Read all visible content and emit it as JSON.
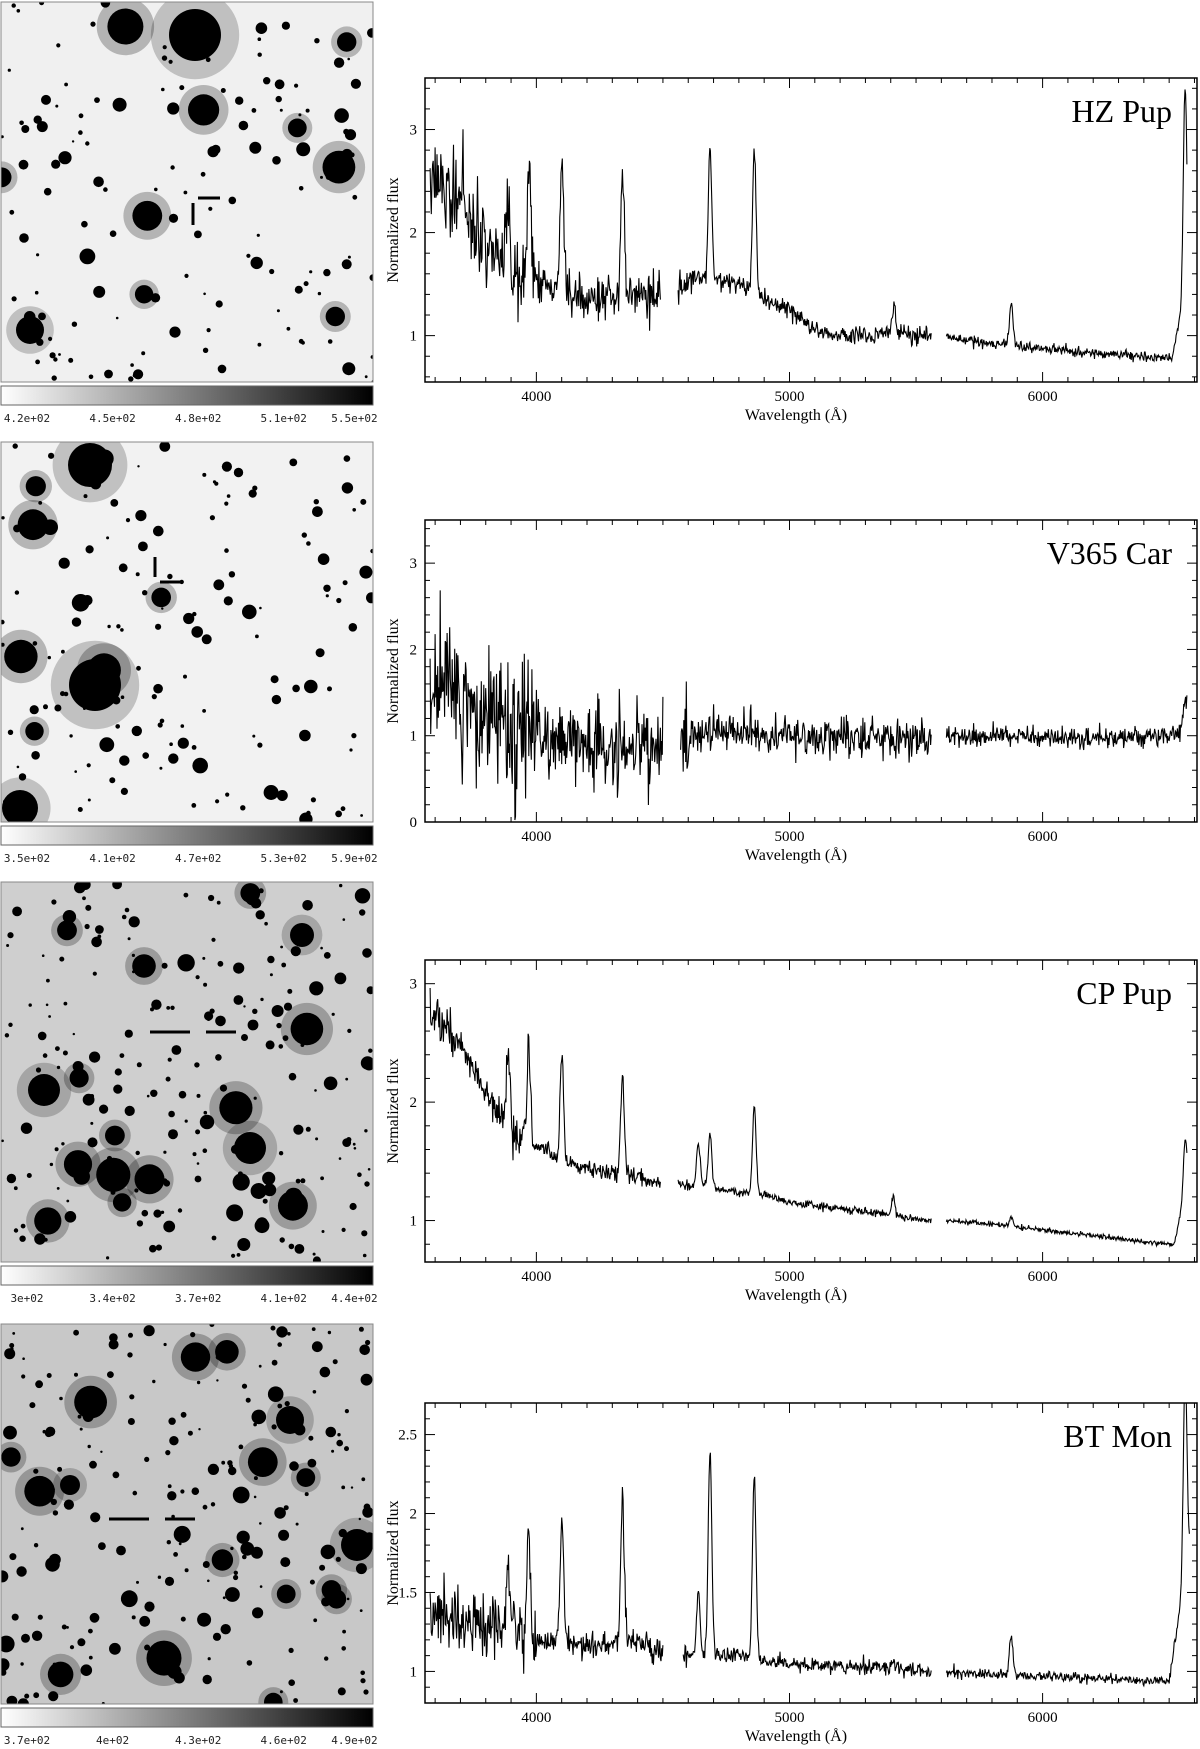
{
  "figure": {
    "panels": [
      {
        "object": "HZ Pup",
        "colorbar_labels": [
          "4.2e+02",
          "4.5e+02",
          "4.8e+02",
          "5.1e+02",
          "5.5e+02"
        ],
        "image_background": "#f0f0f0",
        "marker": "two-ticks-left-top"
      },
      {
        "object": "V365 Car",
        "colorbar_labels": [
          "3.5e+02",
          "4.1e+02",
          "4.7e+02",
          "5.3e+02",
          "5.9e+02"
        ],
        "image_background": "#f2f2f2",
        "marker": "two-ticks-left-bottom"
      },
      {
        "object": "CP Pup",
        "colorbar_labels": [
          "3e+02",
          "3.4e+02",
          "3.7e+02",
          "4.1e+02",
          "4.4e+02"
        ],
        "image_background": "#cfcfcf",
        "marker": "horizontal-both"
      },
      {
        "object": "BT Mon",
        "colorbar_labels": [
          "3.7e+02",
          "4e+02",
          "4.3e+02",
          "4.6e+02",
          "4.9e+02"
        ],
        "image_background": "#c8c8c8",
        "marker": "horizontal-both"
      }
    ]
  },
  "chart_data": [
    {
      "type": "line",
      "object": "HZ Pup",
      "xlabel": "Wavelength (Å)",
      "ylabel": "Normalized flux",
      "xlim": [
        3560,
        6610
      ],
      "ylim": [
        0.55,
        3.5
      ],
      "xticks": [
        4000,
        5000,
        6000
      ],
      "yticks": [
        1,
        2,
        3
      ],
      "noise": [
        0.45,
        0.1,
        0.05
      ],
      "segments": [
        [
          3580,
          4490,
          [
            [
              3580,
              2.6
            ],
            [
              3650,
              2.45
            ],
            [
              3700,
              2.3
            ],
            [
              3800,
              1.9
            ],
            [
              3900,
              1.55
            ],
            [
              4000,
              1.5
            ],
            [
              4100,
              1.45
            ],
            [
              4200,
              1.35
            ],
            [
              4300,
              1.35
            ],
            [
              4400,
              1.4
            ],
            [
              4490,
              1.4
            ]
          ]
        ],
        [
          4560,
          5560,
          [
            [
              4560,
              1.5
            ],
            [
              4650,
              1.55
            ],
            [
              4800,
              1.5
            ],
            [
              4900,
              1.35
            ],
            [
              5000,
              1.25
            ],
            [
              5100,
              1.05
            ],
            [
              5200,
              1.0
            ],
            [
              5300,
              1.0
            ],
            [
              5400,
              1.05
            ],
            [
              5560,
              0.98
            ]
          ]
        ],
        [
          5620,
          6570,
          [
            [
              5620,
              0.97
            ],
            [
              5800,
              0.92
            ],
            [
              6000,
              0.88
            ],
            [
              6200,
              0.83
            ],
            [
              6400,
              0.8
            ],
            [
              6510,
              0.78
            ],
            [
              6570,
              1.5
            ]
          ]
        ]
      ],
      "lines": [
        [
          3889,
          0.9
        ],
        [
          3970,
          1.05
        ],
        [
          4101,
          1.25
        ],
        [
          4340,
          1.15
        ],
        [
          4686,
          1.3
        ],
        [
          4861,
          1.4
        ],
        [
          5411,
          0.2
        ],
        [
          5876,
          0.4
        ],
        [
          6563,
          2.0
        ]
      ],
      "line_width": 7
    },
    {
      "type": "line",
      "object": "V365 Car",
      "xlabel": "Wavelength (Å)",
      "ylabel": "Normalized flux",
      "xlim": [
        3560,
        6610
      ],
      "ylim": [
        0,
        3.5
      ],
      "xticks": [
        4000,
        5000,
        6000
      ],
      "yticks": [
        0,
        1,
        2,
        3
      ],
      "noise": [
        0.8,
        0.25,
        0.12
      ],
      "segments": [
        [
          3580,
          4500,
          [
            [
              3580,
              1.8
            ],
            [
              3650,
              1.6
            ],
            [
              3700,
              1.3
            ],
            [
              3800,
              1.1
            ],
            [
              4000,
              0.95
            ],
            [
              4200,
              0.9
            ],
            [
              4500,
              0.85
            ]
          ]
        ],
        [
          4570,
          5560,
          [
            [
              4570,
              1.0
            ],
            [
              4800,
              1.05
            ],
            [
              5000,
              1.0
            ],
            [
              5300,
              0.98
            ],
            [
              5560,
              0.95
            ]
          ]
        ],
        [
          5620,
          6570,
          [
            [
              5620,
              1.0
            ],
            [
              5900,
              1.0
            ],
            [
              6200,
              0.97
            ],
            [
              6500,
              1.0
            ],
            [
              6570,
              1.1
            ]
          ]
        ]
      ],
      "lines": [
        [
          6563,
          0.3
        ]
      ],
      "line_width": 7
    },
    {
      "type": "line",
      "object": "CP Pup",
      "xlabel": "Wavelength (Å)",
      "ylabel": "Normalized flux",
      "xlim": [
        3560,
        6610
      ],
      "ylim": [
        0.65,
        3.2
      ],
      "xticks": [
        4000,
        5000,
        6000
      ],
      "yticks": [
        1,
        2,
        3
      ],
      "noise": [
        0.18,
        0.03,
        0.02
      ],
      "segments": [
        [
          3580,
          4490,
          [
            [
              3580,
              2.7
            ],
            [
              3650,
              2.65
            ],
            [
              3700,
              2.5
            ],
            [
              3800,
              2.1
            ],
            [
              3900,
              1.75
            ],
            [
              4000,
              1.65
            ],
            [
              4100,
              1.5
            ],
            [
              4200,
              1.45
            ],
            [
              4300,
              1.4
            ],
            [
              4400,
              1.38
            ],
            [
              4490,
              1.3
            ]
          ]
        ],
        [
          4560,
          5560,
          [
            [
              4560,
              1.3
            ],
            [
              4650,
              1.3
            ],
            [
              4750,
              1.25
            ],
            [
              4900,
              1.22
            ],
            [
              5000,
              1.15
            ],
            [
              5200,
              1.1
            ],
            [
              5400,
              1.05
            ],
            [
              5560,
              1.0
            ]
          ]
        ],
        [
          5620,
          6570,
          [
            [
              5620,
              1.0
            ],
            [
              5800,
              0.97
            ],
            [
              6000,
              0.92
            ],
            [
              6200,
              0.87
            ],
            [
              6400,
              0.82
            ],
            [
              6520,
              0.8
            ],
            [
              6570,
              1.3
            ]
          ]
        ]
      ],
      "lines": [
        [
          3889,
          0.6
        ],
        [
          3970,
          0.8
        ],
        [
          4101,
          0.9
        ],
        [
          4340,
          0.85
        ],
        [
          4640,
          0.35
        ],
        [
          4686,
          0.45
        ],
        [
          4861,
          0.75
        ],
        [
          5411,
          0.15
        ],
        [
          5876,
          0.08
        ],
        [
          6563,
          0.45
        ]
      ],
      "line_width": 7
    },
    {
      "type": "line",
      "object": "BT Mon",
      "xlabel": "Wavelength (Å)",
      "ylabel": "Normalized flux",
      "xlim": [
        3560,
        6610
      ],
      "ylim": [
        0.8,
        2.7
      ],
      "xticks": [
        4000,
        5000,
        6000
      ],
      "yticks": [
        1,
        1.5,
        2,
        2.5
      ],
      "noise": [
        0.2,
        0.04,
        0.03
      ],
      "segments": [
        [
          3580,
          4500,
          [
            [
              3580,
              1.35
            ],
            [
              3700,
              1.35
            ],
            [
              3800,
              1.3
            ],
            [
              3900,
              1.25
            ],
            [
              4000,
              1.2
            ],
            [
              4200,
              1.15
            ],
            [
              4400,
              1.2
            ],
            [
              4500,
              1.1
            ]
          ]
        ],
        [
          4580,
          5560,
          [
            [
              4580,
              1.1
            ],
            [
              4700,
              1.1
            ],
            [
              4800,
              1.1
            ],
            [
              5000,
              1.05
            ],
            [
              5200,
              1.03
            ],
            [
              5400,
              1.02
            ],
            [
              5560,
              1.0
            ]
          ]
        ],
        [
          5620,
          6580,
          [
            [
              5620,
              1.0
            ],
            [
              5800,
              0.98
            ],
            [
              6000,
              0.97
            ],
            [
              6300,
              0.95
            ],
            [
              6500,
              0.94
            ],
            [
              6580,
              1.8
            ]
          ]
        ]
      ],
      "lines": [
        [
          3889,
          0.4
        ],
        [
          3970,
          0.6
        ],
        [
          4101,
          0.8
        ],
        [
          4340,
          0.9
        ],
        [
          4640,
          0.4
        ],
        [
          4686,
          1.3
        ],
        [
          4861,
          1.15
        ],
        [
          5411,
          0.05
        ],
        [
          5876,
          0.25
        ],
        [
          6563,
          1.3
        ]
      ],
      "line_width": 7
    }
  ]
}
